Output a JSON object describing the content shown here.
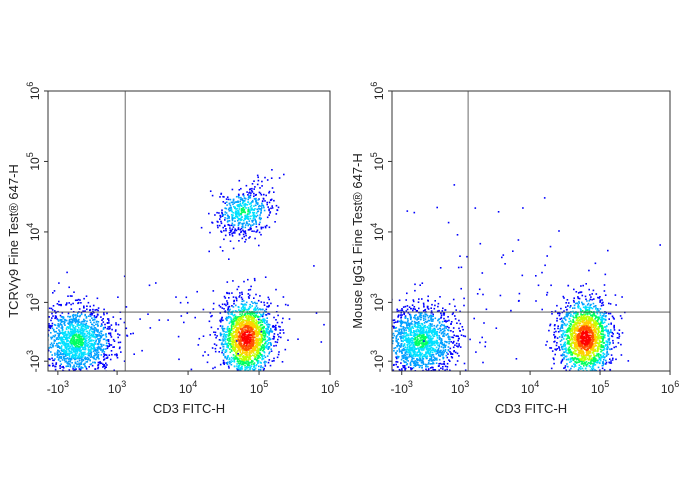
{
  "chart_data": [
    {
      "type": "scatter",
      "panel": "left",
      "xlabel": "CD3 FITC-H",
      "ylabel": "TCRVγ9 Fine Test® 647-H",
      "x_ticks": [
        {
          "base": "-10",
          "exp": "3",
          "v": -1000
        },
        {
          "base": "10",
          "exp": "3",
          "v": 1000
        },
        {
          "base": "10",
          "exp": "4",
          "v": 10000
        },
        {
          "base": "10",
          "exp": "5",
          "v": 100000
        },
        {
          "base": "10",
          "exp": "6",
          "v": 1000000
        }
      ],
      "y_ticks": [
        {
          "base": "-10",
          "exp": "3",
          "v": -1000
        },
        {
          "base": "10",
          "exp": "3",
          "v": 1000
        },
        {
          "base": "10",
          "exp": "4",
          "v": 10000
        },
        {
          "base": "10",
          "exp": "5",
          "v": 100000
        },
        {
          "base": "10",
          "exp": "6",
          "v": 1000000
        }
      ],
      "xlim": [
        -2000,
        1000000
      ],
      "ylim": [
        -2000,
        1000000
      ],
      "scale": "biexponential",
      "quadrant_gate": {
        "x": 1300,
        "y": 700
      },
      "colormap": [
        "#0000ff",
        "#00a0ff",
        "#00e0ff",
        "#00ff60",
        "#c0ff00",
        "#ffd000",
        "#ff5000",
        "#ff0000"
      ],
      "populations": [
        {
          "x_center": -300,
          "y_center": -200,
          "spread": "wide",
          "density": "medium"
        },
        {
          "x_center": 65000,
          "y_center": -100,
          "spread": "compact",
          "density": "high"
        },
        {
          "x_center": 60000,
          "y_center": 20000,
          "spread": "compact",
          "density": "medium"
        },
        {
          "x_center": 20000,
          "y_center": 300,
          "spread": "sparse",
          "density": "low"
        }
      ]
    },
    {
      "type": "scatter",
      "panel": "right",
      "xlabel": "CD3 FITC-H",
      "ylabel": "Mouse IgG1 Fine Test® 647-H",
      "x_ticks": [
        {
          "base": "-10",
          "exp": "3",
          "v": -1000
        },
        {
          "base": "10",
          "exp": "3",
          "v": 1000
        },
        {
          "base": "10",
          "exp": "4",
          "v": 10000
        },
        {
          "base": "10",
          "exp": "5",
          "v": 100000
        },
        {
          "base": "10",
          "exp": "6",
          "v": 1000000
        }
      ],
      "y_ticks": [
        {
          "base": "-10",
          "exp": "3",
          "v": -1000
        },
        {
          "base": "10",
          "exp": "3",
          "v": 1000
        },
        {
          "base": "10",
          "exp": "4",
          "v": 10000
        },
        {
          "base": "10",
          "exp": "5",
          "v": 100000
        },
        {
          "base": "10",
          "exp": "6",
          "v": 1000000
        }
      ],
      "xlim": [
        -2000,
        1000000
      ],
      "ylim": [
        -2000,
        1000000
      ],
      "scale": "biexponential",
      "quadrant_gate": {
        "x": 1300,
        "y": 700
      },
      "colormap": [
        "#0000ff",
        "#00a0ff",
        "#00e0ff",
        "#00ff60",
        "#c0ff00",
        "#ffd000",
        "#ff5000",
        "#ff0000"
      ],
      "populations": [
        {
          "x_center": -300,
          "y_center": -200,
          "spread": "wide",
          "density": "medium"
        },
        {
          "x_center": 60000,
          "y_center": -100,
          "spread": "compact",
          "density": "high"
        },
        {
          "x_center": 5000,
          "y_center": 2000,
          "spread": "sparse",
          "density": "low"
        }
      ]
    }
  ]
}
